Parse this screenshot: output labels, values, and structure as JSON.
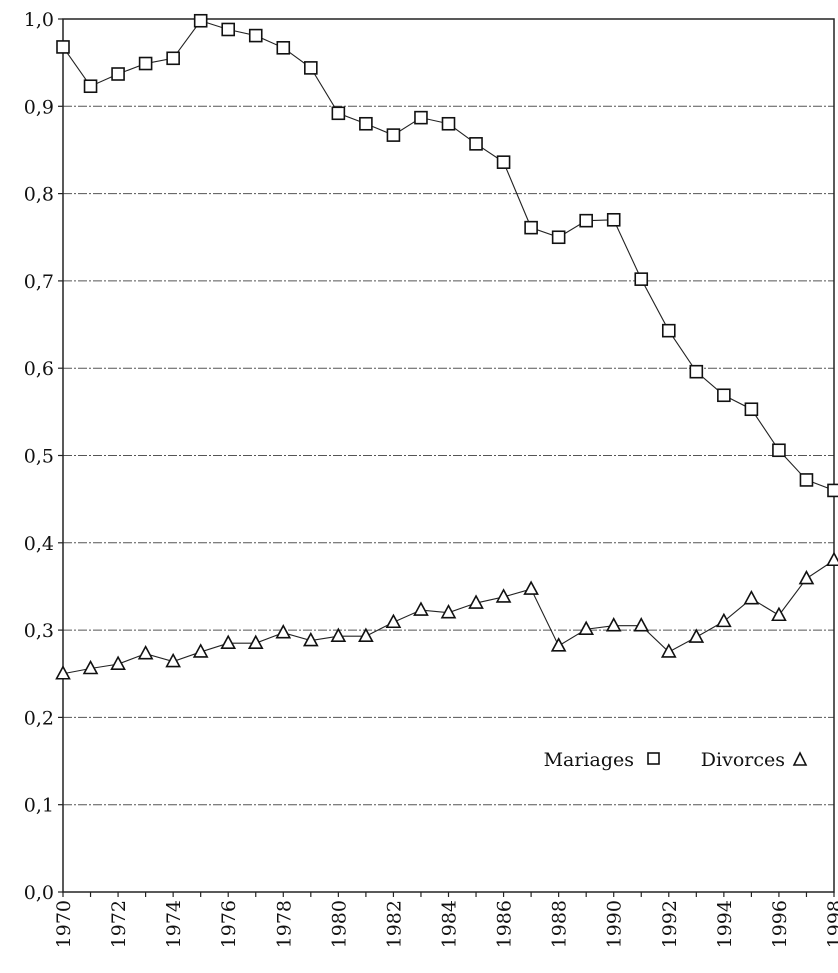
{
  "chart_data": {
    "type": "line",
    "title": "",
    "xlabel": "",
    "ylabel": "",
    "x": [
      1970,
      1971,
      1972,
      1973,
      1974,
      1975,
      1976,
      1977,
      1978,
      1979,
      1980,
      1981,
      1982,
      1983,
      1984,
      1985,
      1986,
      1987,
      1988,
      1989,
      1990,
      1991,
      1992,
      1993,
      1994,
      1995,
      1996,
      1997,
      1998
    ],
    "x_tick_labels": [
      "1970",
      "1972",
      "1974",
      "1976",
      "1978",
      "1980",
      "1982",
      "1984",
      "1986",
      "1988",
      "1990",
      "1992",
      "1994",
      "1996",
      "1998"
    ],
    "y_tick_labels": [
      "0,0",
      "0,1",
      "0,2",
      "0,3",
      "0,4",
      "0,5",
      "0,6",
      "0,7",
      "0,8",
      "0,9",
      "1,0"
    ],
    "ylim": [
      0,
      1.0
    ],
    "xlim": [
      1970,
      1998
    ],
    "grid": "horizontal",
    "legend_position": "lower-right",
    "series": [
      {
        "name": "Mariages",
        "marker": "square",
        "values": [
          0.968,
          0.923,
          0.937,
          0.949,
          0.955,
          0.998,
          0.988,
          0.981,
          0.967,
          0.944,
          0.892,
          0.88,
          0.867,
          0.887,
          0.88,
          0.857,
          0.836,
          0.761,
          0.75,
          0.769,
          0.77,
          0.702,
          0.643,
          0.596,
          0.569,
          0.553,
          0.506,
          0.472,
          0.46
        ]
      },
      {
        "name": "Divorces",
        "marker": "triangle",
        "values": [
          0.25,
          0.256,
          0.261,
          0.273,
          0.264,
          0.275,
          0.285,
          0.285,
          0.297,
          0.288,
          0.293,
          0.293,
          0.309,
          0.323,
          0.32,
          0.331,
          0.338,
          0.347,
          0.282,
          0.301,
          0.305,
          0.305,
          0.275,
          0.292,
          0.31,
          0.336,
          0.317,
          0.359,
          0.38
        ]
      }
    ]
  }
}
